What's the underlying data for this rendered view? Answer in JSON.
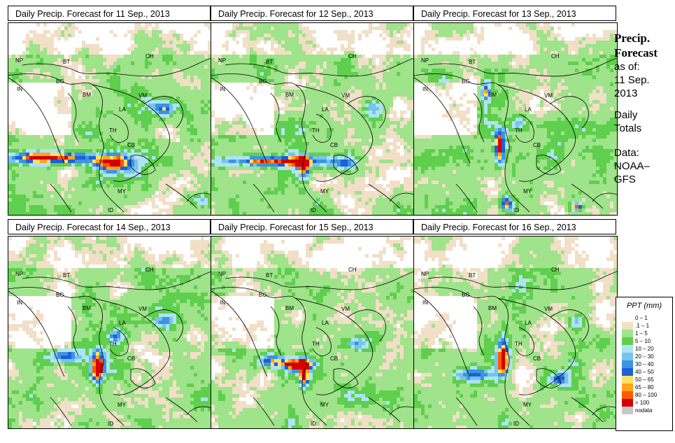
{
  "panels": [
    {
      "title": "Daily Precip. Forecast for  11 Sep., 2013"
    },
    {
      "title": "Daily Precip. Forecast for  12 Sep., 2013"
    },
    {
      "title": "Daily Precip. Forecast for  13 Sep., 2013"
    },
    {
      "title": "Daily Precip. Forecast for  14 Sep., 2013"
    },
    {
      "title": "Daily Precip. Forecast for  15 Sep., 2013"
    },
    {
      "title": "Daily Precip. Forecast for  16 Sep., 2013"
    }
  ],
  "side": {
    "line1": "Precip.",
    "line2": "Forecast",
    "line3": "as of:",
    "line4": "11 Sep.",
    "line5": "2013",
    "line6": "Daily",
    "line7": "Totals",
    "line8": "Data:",
    "line9": "NOAA–",
    "line10": "GFS"
  },
  "legend": {
    "title": "PPT (mm)",
    "classes": [
      {
        "label": "0 – 1",
        "color": "#ffffff"
      },
      {
        "label": ".1 – 1",
        "color": "#f1dfc7"
      },
      {
        "label": "1 – 5",
        "color": "#9fe38a"
      },
      {
        "label": "5 – 10",
        "color": "#5fcf4e"
      },
      {
        "label": "10 – 20",
        "color": "#aee3f5"
      },
      {
        "label": "20 – 30",
        "color": "#76c4ec"
      },
      {
        "label": "30 – 40",
        "color": "#3b94e0"
      },
      {
        "label": "40 – 50",
        "color": "#1f5fd8"
      },
      {
        "label": "50 – 65",
        "color": "#ffe066"
      },
      {
        "label": "65 – 80",
        "color": "#ffa21f"
      },
      {
        "label": "80 – 100",
        "color": "#ff5a00"
      },
      {
        "label": "> 100",
        "color": "#d40000"
      },
      {
        "label": "nodata",
        "color": "#c8c8c8"
      }
    ]
  },
  "map_labels": [
    "NP",
    "BT",
    "BG",
    "IN",
    "BM",
    "VM",
    "LA",
    "CH",
    "TH",
    "CB",
    "MY",
    "ID"
  ]
}
